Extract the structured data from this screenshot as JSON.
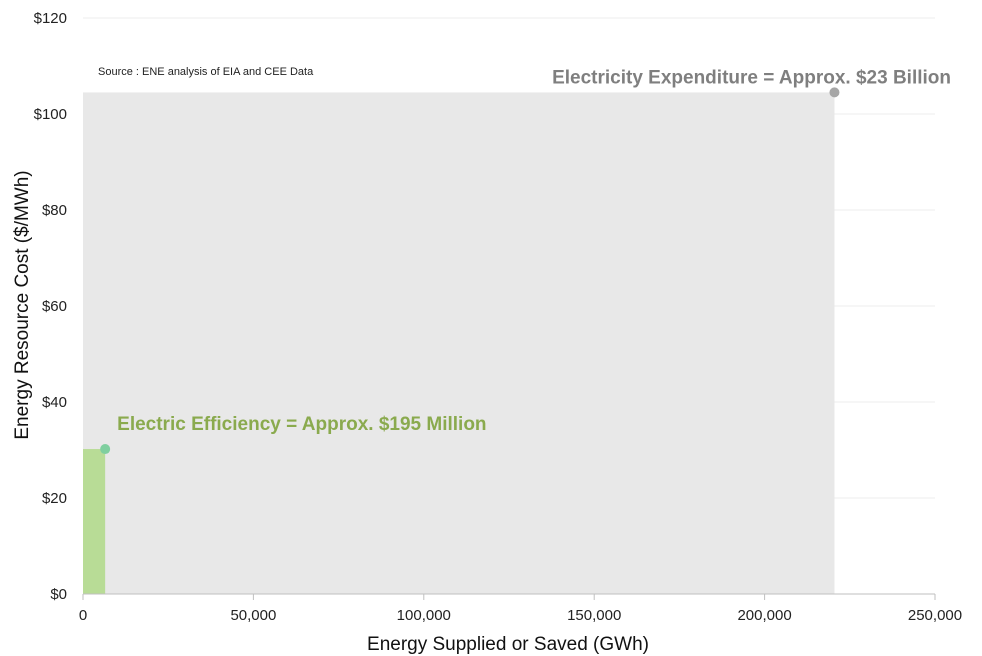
{
  "chart_data": {
    "type": "area",
    "title": "",
    "xlabel": "Energy Supplied or Saved (GWh)",
    "ylabel": "Energy Resource Cost ($/MWh)",
    "xlim": [
      0,
      250000
    ],
    "ylim": [
      0,
      120
    ],
    "x_ticks": [
      "0",
      "50,000",
      "100,000",
      "150,000",
      "200,000",
      "250,000"
    ],
    "y_ticks": [
      "$0",
      "$20",
      "$40",
      "$60",
      "$80",
      "$100",
      "$120"
    ],
    "grid": true,
    "source_note": "Source : ENE analysis of EIA and CEE Data",
    "series": [
      {
        "name": "Electricity Expenditure",
        "x": 220500,
        "y": 104.5,
        "color": "#e8e8e8",
        "point_color": "#a6a6a6",
        "annotation": "Electricity Expenditure = Approx. $23 Billion",
        "annotation_color": "#7f7f7f"
      },
      {
        "name": "Electric Efficiency",
        "x": 6500,
        "y": 30.2,
        "color": "#b8dc96",
        "point_color": "#7fcf9f",
        "annotation": "Electric Efficiency = Approx. $195 Million",
        "annotation_color": "#8aaa4e"
      }
    ]
  }
}
